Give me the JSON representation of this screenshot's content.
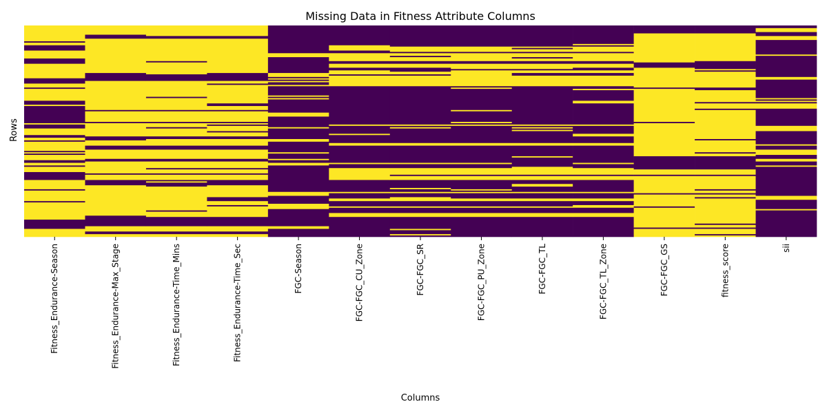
{
  "chart_data": {
    "type": "heatmap",
    "title": "Missing Data in Fitness Attribute Columns",
    "xlabel": "Columns",
    "ylabel": "Rows",
    "columns": [
      "Fitness_Endurance-Season",
      "Fitness_Endurance-Max_Stage",
      "Fitness_Endurance-Time_Mins",
      "Fitness_Endurance-Time_Sec",
      "FGC-Season",
      "FGC-FGC_CU_Zone",
      "FGC-FGC_SR",
      "FGC-FGC_PU_Zone",
      "FGC-FGC_TL",
      "FGC-FGC_TL_Zone",
      "FGC-FGC_GS",
      "fitness_score",
      "sii"
    ],
    "approx_missing_fraction": [
      0.72,
      0.85,
      0.85,
      0.85,
      0.12,
      0.35,
      0.35,
      0.36,
      0.34,
      0.34,
      0.82,
      0.83,
      0.06
    ],
    "colormap": {
      "missing": "#fde725",
      "present": "#440154"
    },
    "colorbar": false,
    "y_tick_labels": false
  }
}
